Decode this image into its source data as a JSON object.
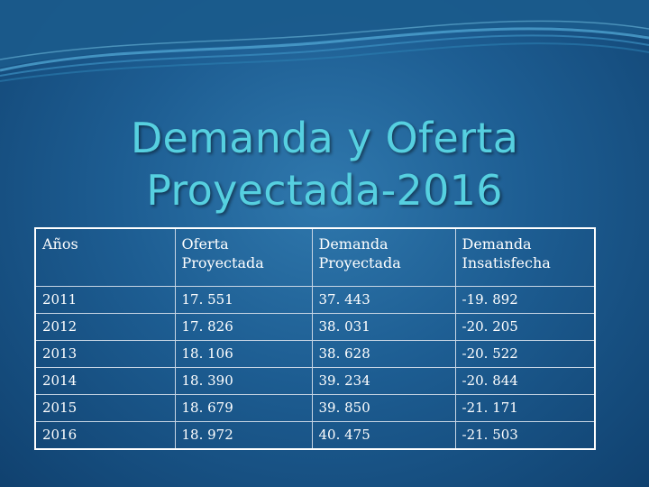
{
  "slide": {
    "title_line1": "Demanda y Oferta",
    "title_line2": "Proyectada-2016"
  },
  "table": {
    "headers": [
      [
        "Años"
      ],
      [
        "Oferta",
        "Proyectada"
      ],
      [
        "Demanda",
        "Proyectada"
      ],
      [
        "Demanda",
        "Insatisfecha"
      ]
    ],
    "rows": [
      [
        "2011",
        "17. 551",
        "37. 443",
        "-19. 892"
      ],
      [
        "2012",
        "17. 826",
        "38. 031",
        "-20. 205"
      ],
      [
        "2013",
        "18. 106",
        "38. 628",
        "-20. 522"
      ],
      [
        "2014",
        "18. 390",
        "39. 234",
        "-20. 844"
      ],
      [
        "2015",
        "18. 679",
        "39. 850",
        "-21. 171"
      ],
      [
        "2016",
        "18. 972",
        "40. 475",
        "-21. 503"
      ]
    ]
  },
  "colors": {
    "title": "#56d0e0",
    "background": "#1d5d92",
    "text": "#ffffff"
  }
}
